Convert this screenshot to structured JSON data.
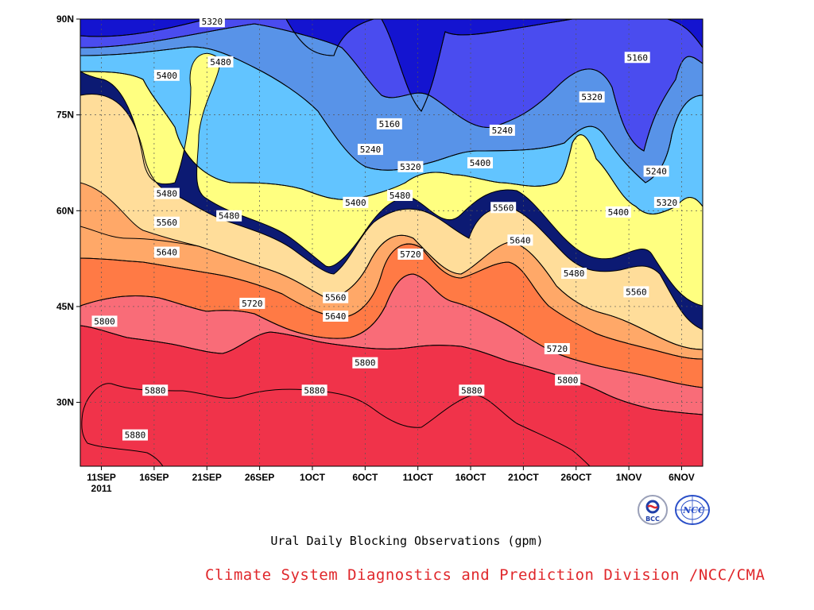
{
  "chart_data": {
    "type": "contour",
    "title": "",
    "caption": "Ural Daily Blocking Observations (gpm)",
    "xlabel": "",
    "ylabel": "",
    "x_ticks": [
      "11SEP",
      "16SEP",
      "21SEP",
      "26SEP",
      "1OCT",
      "6OCT",
      "11OCT",
      "16OCT",
      "21OCT",
      "26OCT",
      "1NOV",
      "6NOV"
    ],
    "x_year_label": "2011",
    "x_range_days": [
      0,
      59
    ],
    "y_ticks": [
      "30N",
      "45N",
      "60N",
      "75N",
      "90N"
    ],
    "y_tick_values": [
      30,
      45,
      60,
      75,
      90
    ],
    "ylim": [
      20,
      90
    ],
    "grid": true,
    "contour_levels": [
      5080,
      5160,
      5240,
      5320,
      5400,
      5480,
      5560,
      5640,
      5720,
      5800,
      5880
    ],
    "fill_colors": [
      "#0c1a73",
      "#1414d0",
      "#4a4cef",
      "#5893e8",
      "#62c4ff",
      "#ffff80",
      "#ffdd9a",
      "#ffa868",
      "#ff7a45",
      "#f96c78",
      "#f0334a"
    ],
    "contour_labels": [
      {
        "text": "5320",
        "day": 12.5,
        "lat": 89.6
      },
      {
        "text": "5480",
        "day": 13.3,
        "lat": 83.3
      },
      {
        "text": "5400",
        "day": 8.2,
        "lat": 81.2
      },
      {
        "text": "5160",
        "day": 29.3,
        "lat": 73.6
      },
      {
        "text": "5240",
        "day": 27.5,
        "lat": 69.6
      },
      {
        "text": "5320",
        "day": 31.3,
        "lat": 66.9
      },
      {
        "text": "5400",
        "day": 37.9,
        "lat": 67.5
      },
      {
        "text": "5240",
        "day": 40.0,
        "lat": 72.6
      },
      {
        "text": "5320",
        "day": 48.5,
        "lat": 77.8
      },
      {
        "text": "5160",
        "day": 52.8,
        "lat": 84.0
      },
      {
        "text": "5240",
        "day": 54.6,
        "lat": 66.2
      },
      {
        "text": "5320",
        "day": 55.6,
        "lat": 61.3
      },
      {
        "text": "5400",
        "day": 51.0,
        "lat": 59.8
      },
      {
        "text": "5400",
        "day": 26.1,
        "lat": 61.3
      },
      {
        "text": "5480",
        "day": 30.3,
        "lat": 62.4
      },
      {
        "text": "5480",
        "day": 8.2,
        "lat": 62.7
      },
      {
        "text": "5480",
        "day": 14.1,
        "lat": 59.2
      },
      {
        "text": "5560",
        "day": 8.2,
        "lat": 58.2
      },
      {
        "text": "5560",
        "day": 40.1,
        "lat": 60.5
      },
      {
        "text": "5640",
        "day": 8.2,
        "lat": 53.5
      },
      {
        "text": "5640",
        "day": 41.7,
        "lat": 55.4
      },
      {
        "text": "5720",
        "day": 31.3,
        "lat": 53.2
      },
      {
        "text": "5480",
        "day": 46.8,
        "lat": 50.2
      },
      {
        "text": "5560",
        "day": 52.7,
        "lat": 47.3
      },
      {
        "text": "5560",
        "day": 24.2,
        "lat": 46.4
      },
      {
        "text": "5640",
        "day": 24.2,
        "lat": 43.5
      },
      {
        "text": "5720",
        "day": 16.3,
        "lat": 45.5
      },
      {
        "text": "5720",
        "day": 45.2,
        "lat": 38.4
      },
      {
        "text": "5800",
        "day": 2.3,
        "lat": 42.7
      },
      {
        "text": "5800",
        "day": 27.0,
        "lat": 36.2
      },
      {
        "text": "5800",
        "day": 46.2,
        "lat": 33.5
      },
      {
        "text": "5880",
        "day": 7.1,
        "lat": 31.9
      },
      {
        "text": "5880",
        "day": 22.2,
        "lat": 31.9
      },
      {
        "text": "5880",
        "day": 37.1,
        "lat": 31.9
      },
      {
        "text": "5880",
        "day": 5.2,
        "lat": 24.9
      }
    ]
  },
  "footer": {
    "credit": "Climate System Diagnostics and Prediction Division /NCC/CMA",
    "logos": [
      {
        "name": "bcc-logo",
        "text": "BCC",
        "color": "#1f3fa8"
      },
      {
        "name": "ncc-logo",
        "text": "NCC",
        "color": "#2a4fc8"
      }
    ]
  }
}
